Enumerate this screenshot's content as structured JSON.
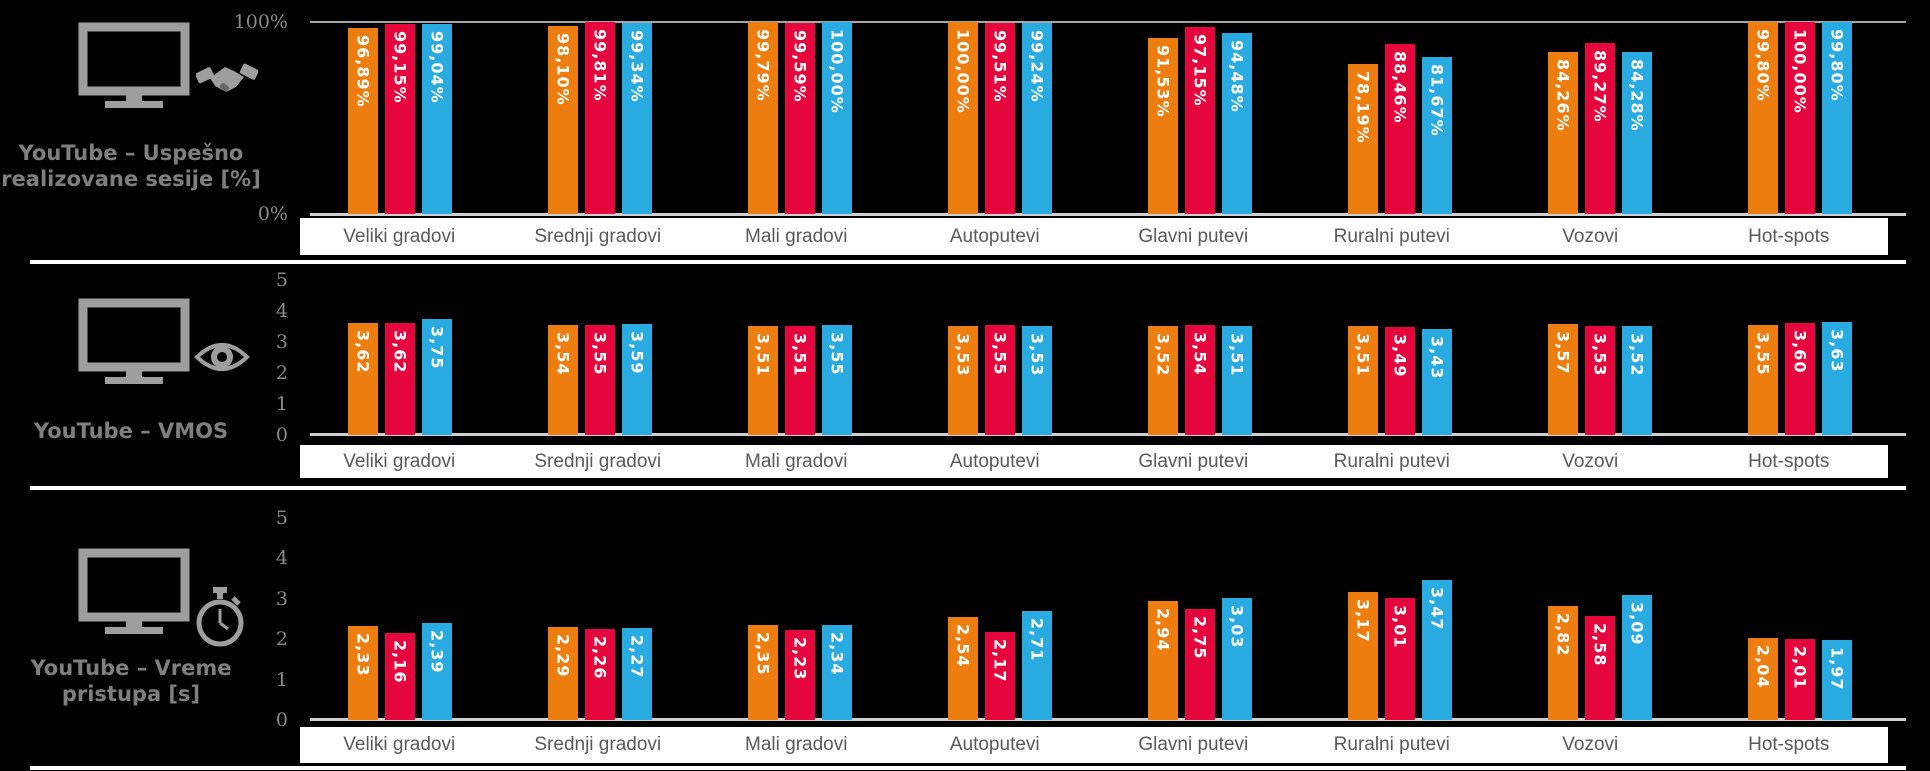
{
  "app": {
    "background_color": "#000000",
    "accent_colors": {
      "orange": "#ED7D0E",
      "red": "#E4063C",
      "blue": "#29AAE1"
    },
    "category_label_color": "#595959",
    "title_color": "#7F7F7F"
  },
  "categories": [
    "Veliki gradovi",
    "Srednji gradovi",
    "Mali gradovi",
    "Autoputevi",
    "Glavni putevi",
    "Ruralni putevi",
    "Vozovi",
    "Hot-spots"
  ],
  "chart_data": [
    {
      "type": "bar",
      "title": "YouTube – Uspešno realizovane sesije [%]",
      "title_lines": [
        "YouTube – Uspešno",
        "realizovane sesije [%]"
      ],
      "icon": "monitor-handshake",
      "xlabel": "",
      "ylabel": "",
      "ylim": [
        0,
        100
      ],
      "axis_ticks": [
        "100%",
        "0%"
      ],
      "grid": "top reference line at 100%",
      "legend_position": "none",
      "value_label_orientation": "vertical",
      "categories": [
        "Veliki gradovi",
        "Srednji gradovi",
        "Mali gradovi",
        "Autoputevi",
        "Glavni putevi",
        "Ruralni putevi",
        "Vozovi",
        "Hot-spots"
      ],
      "series": [
        {
          "name": "orange",
          "color": "#ED7D0E",
          "values": [
            96.89,
            98.1,
            99.79,
            100.0,
            91.53,
            78.19,
            84.26,
            99.8
          ],
          "labels": [
            "96,89%",
            "98,10%",
            "99,79%",
            "100,00%",
            "91,53%",
            "78,19%",
            "84,26%",
            "99,80%"
          ]
        },
        {
          "name": "red",
          "color": "#E4063C",
          "values": [
            99.15,
            99.81,
            99.59,
            99.51,
            97.15,
            88.46,
            89.27,
            100.0
          ],
          "labels": [
            "99,15%",
            "99,81%",
            "99,59%",
            "99,51%",
            "97,15%",
            "88,46%",
            "89,27%",
            "100,00%"
          ]
        },
        {
          "name": "blue",
          "color": "#29AAE1",
          "values": [
            99.04,
            99.34,
            100.0,
            99.24,
            94.48,
            81.67,
            84.28,
            99.8
          ],
          "labels": [
            "99,04%",
            "99,34%",
            "100,00%",
            "99,24%",
            "94,48%",
            "81,67%",
            "84,28%",
            "99,80%"
          ]
        }
      ]
    },
    {
      "type": "bar",
      "title": "YouTube – VMOS",
      "title_lines": [
        "YouTube – VMOS"
      ],
      "icon": "monitor-eye",
      "xlabel": "",
      "ylabel": "",
      "ylim": [
        0,
        5
      ],
      "axis_ticks": [
        "5",
        "4",
        "3",
        "2",
        "1",
        "0"
      ],
      "grid": "off",
      "legend_position": "none",
      "value_label_orientation": "vertical",
      "categories": [
        "Veliki gradovi",
        "Srednji gradovi",
        "Mali gradovi",
        "Autoputevi",
        "Glavni putevi",
        "Ruralni putevi",
        "Vozovi",
        "Hot-spots"
      ],
      "series": [
        {
          "name": "orange",
          "color": "#ED7D0E",
          "values": [
            3.62,
            3.54,
            3.51,
            3.53,
            3.52,
            3.51,
            3.57,
            3.55
          ],
          "labels": [
            "3,62",
            "3,54",
            "3,51",
            "3,53",
            "3,52",
            "3,51",
            "3,57",
            "3,55"
          ]
        },
        {
          "name": "red",
          "color": "#E4063C",
          "values": [
            3.62,
            3.55,
            3.51,
            3.55,
            3.54,
            3.49,
            3.53,
            3.6
          ],
          "labels": [
            "3,62",
            "3,55",
            "3,51",
            "3,55",
            "3,54",
            "3,49",
            "3,53",
            "3,60"
          ]
        },
        {
          "name": "blue",
          "color": "#29AAE1",
          "values": [
            3.75,
            3.59,
            3.55,
            3.53,
            3.51,
            3.43,
            3.52,
            3.63
          ],
          "labels": [
            "3,75",
            "3,59",
            "3,55",
            "3,53",
            "3,51",
            "3,43",
            "3,52",
            "3,63"
          ]
        }
      ]
    },
    {
      "type": "bar",
      "title": "YouTube – Vreme pristupa [s]",
      "title_lines": [
        "YouTube – Vreme",
        "pristupa [s]"
      ],
      "icon": "monitor-stopwatch",
      "xlabel": "",
      "ylabel": "",
      "ylim": [
        0,
        5
      ],
      "axis_ticks": [
        "5",
        "4",
        "3",
        "2",
        "1",
        "0"
      ],
      "grid": "off",
      "legend_position": "none",
      "value_label_orientation": "vertical",
      "categories": [
        "Veliki gradovi",
        "Srednji gradovi",
        "Mali gradovi",
        "Autoputevi",
        "Glavni putevi",
        "Ruralni putevi",
        "Vozovi",
        "Hot-spots"
      ],
      "series": [
        {
          "name": "orange",
          "color": "#ED7D0E",
          "values": [
            2.33,
            2.29,
            2.35,
            2.54,
            2.94,
            3.17,
            2.82,
            2.04
          ],
          "labels": [
            "2,33",
            "2,29",
            "2,35",
            "2,54",
            "2,94",
            "3,17",
            "2,82",
            "2,04"
          ]
        },
        {
          "name": "red",
          "color": "#E4063C",
          "values": [
            2.16,
            2.26,
            2.23,
            2.17,
            2.75,
            3.01,
            2.58,
            2.01
          ],
          "labels": [
            "2,16",
            "2,26",
            "2,23",
            "2,17",
            "2,75",
            "3,01",
            "2,58",
            "2,01"
          ]
        },
        {
          "name": "blue",
          "color": "#29AAE1",
          "values": [
            2.39,
            2.27,
            2.34,
            2.71,
            3.03,
            3.47,
            3.09,
            1.97
          ],
          "labels": [
            "2,39",
            "2,27",
            "2,34",
            "2,71",
            "3,03",
            "3,47",
            "3,09",
            "1,97"
          ]
        }
      ]
    }
  ]
}
